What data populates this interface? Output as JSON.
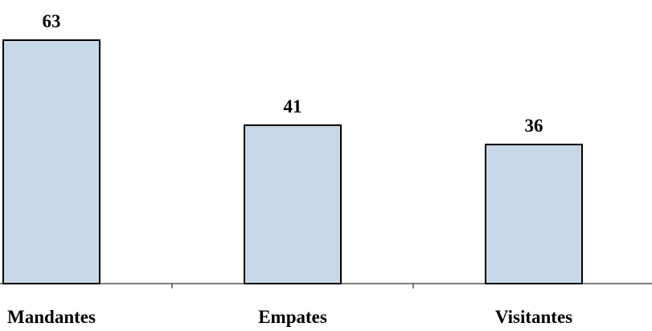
{
  "chart_data": {
    "type": "bar",
    "categories": [
      "Mandantes",
      "Empates",
      "Visitantes"
    ],
    "values": [
      63,
      41,
      36
    ],
    "title": "",
    "xlabel": "",
    "ylabel": "",
    "ylim": [
      0,
      63
    ],
    "grid": false,
    "data_labels": true,
    "colors": {
      "bar_fill": "#c8d8e6",
      "bar_stroke": "#000000",
      "text": "#000000"
    }
  }
}
